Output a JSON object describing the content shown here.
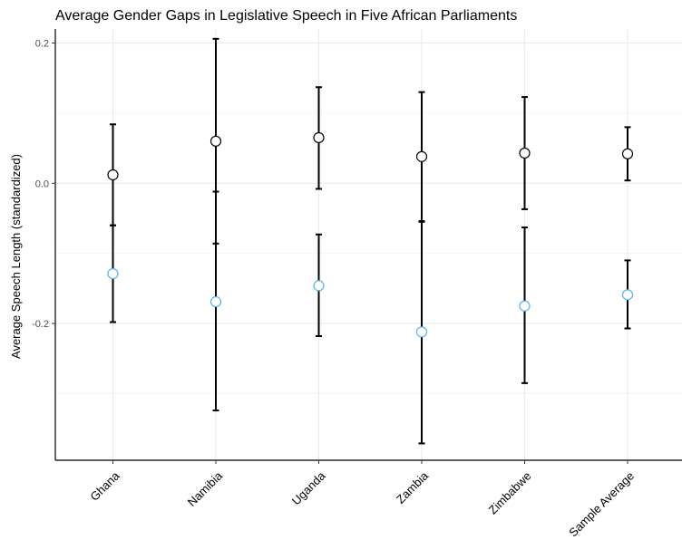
{
  "chart_data": {
    "type": "scatter",
    "subtype": "point-range",
    "title": "Average Gender Gaps in Legislative Speech in Five African Parliaments",
    "xlabel": "",
    "ylabel": "Average Speech Length (standardized)",
    "categories": [
      "Ghana",
      "Namibia",
      "Uganda",
      "Zambia",
      "Zimbabwe",
      "Sample Average"
    ],
    "ylim": [
      -0.395,
      0.22
    ],
    "yticks": [
      0.2,
      0.0,
      -0.2
    ],
    "ytick_labels": [
      "0.2",
      "0.0",
      "-0.2"
    ],
    "grid": true,
    "legend": "none",
    "series": [
      {
        "marker_fill": "#ffffff",
        "marker_edge": "#000000",
        "values": [
          0.012,
          0.06,
          0.065,
          0.038,
          0.043,
          0.042
        ],
        "lower": [
          -0.06,
          -0.086,
          -0.008,
          -0.054,
          -0.037,
          0.004
        ],
        "upper": [
          0.084,
          0.206,
          0.137,
          0.13,
          0.123,
          0.08
        ]
      },
      {
        "marker_fill": "#ffffff",
        "marker_edge": "#56b4e9",
        "values": [
          -0.129,
          -0.169,
          -0.146,
          -0.212,
          -0.175,
          -0.159
        ],
        "lower": [
          -0.198,
          -0.324,
          -0.218,
          -0.371,
          -0.285,
          -0.207
        ],
        "upper": [
          -0.06,
          -0.012,
          -0.073,
          -0.055,
          -0.063,
          -0.11
        ]
      }
    ]
  }
}
